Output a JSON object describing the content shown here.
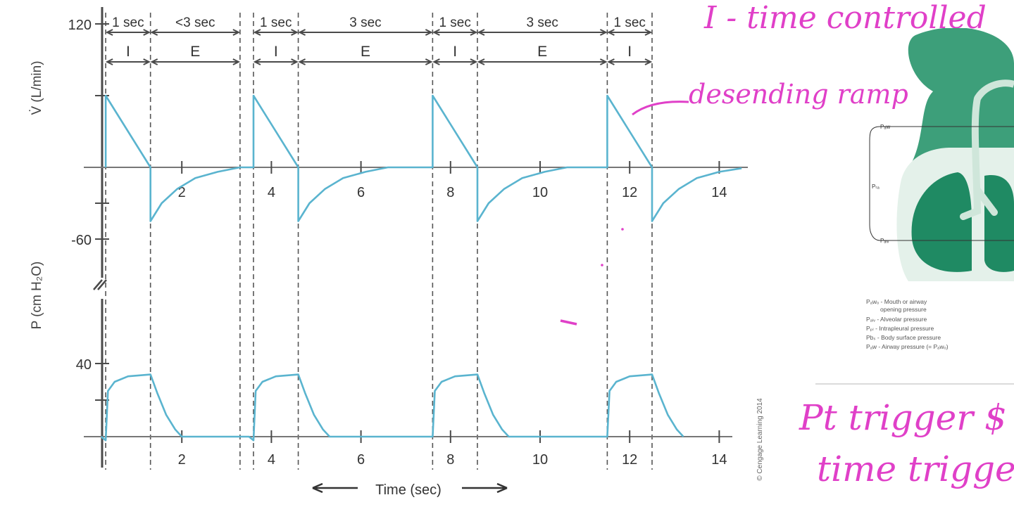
{
  "colors": {
    "trace": "#5ab4cf",
    "ink": "#4a4a4a",
    "annotation": "#e040c8",
    "lung": "#1f8a63",
    "lung_light": "#5fb08e"
  },
  "chart_data": {
    "type": "line",
    "xlabel": "Time (sec)",
    "x_ticks": [
      "2",
      "4",
      "6",
      "8",
      "10",
      "12",
      "14"
    ],
    "flow_panel": {
      "ylabel": "V̇ (L/min)",
      "y_ticks": [
        "120",
        "-60"
      ],
      "series": [
        {
          "points": [
            [
              0.3,
              0
            ],
            [
              0.3,
              80
            ],
            [
              1.3,
              0
            ],
            [
              1.3,
              -60
            ],
            [
              1.55,
              -40
            ],
            [
              1.9,
              -24
            ],
            [
              2.3,
              -12
            ],
            [
              2.8,
              -5
            ],
            [
              3.3,
              0
            ],
            [
              3.6,
              0
            ],
            [
              3.6,
              80
            ],
            [
              4.6,
              0
            ],
            [
              4.6,
              -60
            ],
            [
              4.85,
              -40
            ],
            [
              5.2,
              -24
            ],
            [
              5.6,
              -12
            ],
            [
              6.1,
              -5
            ],
            [
              6.6,
              0
            ],
            [
              7.6,
              0
            ],
            [
              7.6,
              80
            ],
            [
              8.6,
              0
            ],
            [
              8.6,
              -60
            ],
            [
              8.85,
              -40
            ],
            [
              9.2,
              -24
            ],
            [
              9.6,
              -12
            ],
            [
              10.1,
              -5
            ],
            [
              10.6,
              0
            ],
            [
              11.5,
              0
            ],
            [
              11.5,
              80
            ],
            [
              12.5,
              0
            ],
            [
              12.5,
              -60
            ],
            [
              12.75,
              -40
            ],
            [
              13.1,
              -24
            ],
            [
              13.5,
              -12
            ],
            [
              14.0,
              -5
            ],
            [
              14.5,
              -1
            ]
          ]
        }
      ]
    },
    "pressure_panel": {
      "ylabel": "P (cm H₂O)",
      "y_ticks": [
        "40"
      ],
      "series": [
        {
          "points": [
            [
              0.2,
              0
            ],
            [
              0.3,
              -2
            ],
            [
              0.35,
              25
            ],
            [
              0.5,
              30
            ],
            [
              0.8,
              33
            ],
            [
              1.3,
              34
            ],
            [
              1.45,
              24
            ],
            [
              1.65,
              12
            ],
            [
              1.85,
              4
            ],
            [
              2.0,
              0
            ],
            [
              3.5,
              0
            ],
            [
              3.6,
              -2
            ],
            [
              3.65,
              25
            ],
            [
              3.8,
              30
            ],
            [
              4.1,
              33
            ],
            [
              4.6,
              34
            ],
            [
              4.75,
              24
            ],
            [
              4.95,
              12
            ],
            [
              5.15,
              4
            ],
            [
              5.3,
              0
            ],
            [
              7.6,
              0
            ],
            [
              7.65,
              25
            ],
            [
              7.8,
              30
            ],
            [
              8.1,
              33
            ],
            [
              8.6,
              34
            ],
            [
              8.75,
              24
            ],
            [
              8.95,
              12
            ],
            [
              9.15,
              4
            ],
            [
              9.3,
              0
            ],
            [
              11.5,
              0
            ],
            [
              11.55,
              25
            ],
            [
              11.7,
              30
            ],
            [
              12.0,
              33
            ],
            [
              12.5,
              34
            ],
            [
              12.65,
              24
            ],
            [
              12.85,
              12
            ],
            [
              13.05,
              4
            ],
            [
              13.2,
              0
            ]
          ]
        }
      ]
    },
    "cycle_lines": [
      0.3,
      1.3,
      3.3,
      3.6,
      4.6,
      7.6,
      8.6,
      11.5,
      12.5
    ],
    "timing_rows": [
      {
        "segments": [
          {
            "from": 0.3,
            "to": 1.3,
            "label": "1 sec"
          },
          {
            "from": 1.3,
            "to": 3.3,
            "label": "<3 sec"
          },
          {
            "from": 3.6,
            "to": 4.6,
            "label": "1 sec"
          },
          {
            "from": 4.6,
            "to": 7.6,
            "label": "3 sec"
          },
          {
            "from": 7.6,
            "to": 8.6,
            "label": "1 sec"
          },
          {
            "from": 8.6,
            "to": 11.5,
            "label": "3 sec"
          },
          {
            "from": 11.5,
            "to": 12.5,
            "label": "1 sec"
          }
        ]
      },
      {
        "segments": [
          {
            "from": 0.3,
            "to": 1.3,
            "label": "I"
          },
          {
            "from": 1.3,
            "to": 3.3,
            "label": "E"
          },
          {
            "from": 3.6,
            "to": 4.6,
            "label": "I"
          },
          {
            "from": 4.6,
            "to": 7.6,
            "label": "E"
          },
          {
            "from": 7.6,
            "to": 8.6,
            "label": "I"
          },
          {
            "from": 8.6,
            "to": 11.5,
            "label": "E"
          },
          {
            "from": 11.5,
            "to": 12.5,
            "label": "I"
          }
        ]
      }
    ],
    "copyright": "© Cengage Learning 2014"
  },
  "annotations": {
    "top": "I - time controlled",
    "ramp": "desending ramp",
    "trigger_line1": "Pt trigger $",
    "trigger_line2": "time trigger"
  },
  "lung_diagram": {
    "labels": {
      "top": "Pₐw",
      "mid": "Pₜₐ",
      "bottom": "Pₐₗᵥ"
    },
    "legend": [
      "Pₐwₒ - Mouth or airway",
      "opening pressure",
      "Pₐₗᵥ - Alveolar pressure",
      "Pₚₗ - Intrapleural pressure",
      "Pbₛ - Body surface pressure",
      "Pₐw - Airway pressure (= Pₐwₒ)"
    ]
  }
}
